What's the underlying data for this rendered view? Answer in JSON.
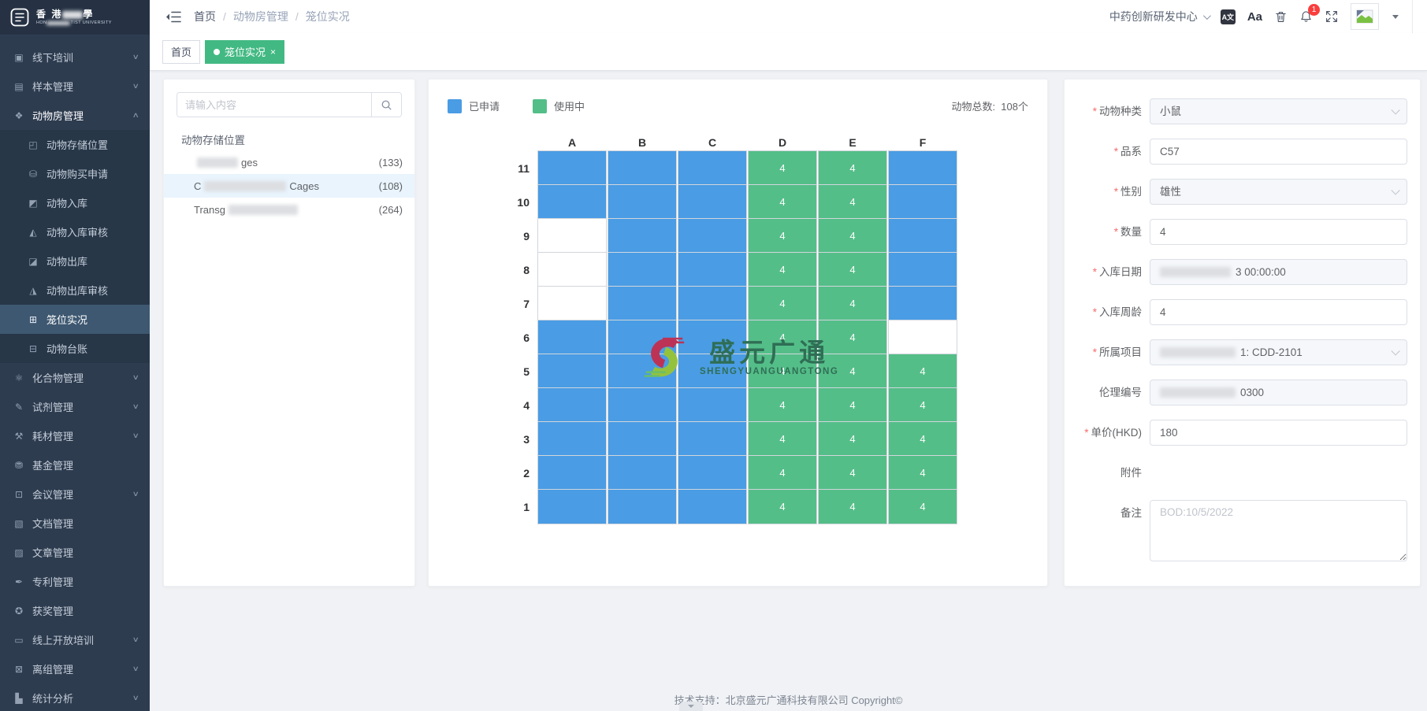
{
  "brand": {
    "zh_prefix": "香 港",
    "zh_suffix": "學",
    "en_prefix": "HON",
    "en_suffix": "TIST UNIVERSITY"
  },
  "sidebar": {
    "items": [
      {
        "name": "offline-training",
        "label": "线下培训",
        "glyph": "▣",
        "chevron": "down"
      },
      {
        "name": "sample-management",
        "label": "样本管理",
        "glyph": "▤",
        "chevron": "down"
      },
      {
        "name": "animal-room-management",
        "label": "动物房管理",
        "glyph": "❖",
        "chevron": "up",
        "open": true,
        "children": [
          {
            "name": "animal-storage-location",
            "label": "动物存储位置",
            "glyph": "◰"
          },
          {
            "name": "animal-purchase-request",
            "label": "动物购买申请",
            "glyph": "⛁"
          },
          {
            "name": "animal-inbound",
            "label": "动物入库",
            "glyph": "◩"
          },
          {
            "name": "animal-inbound-audit",
            "label": "动物入库审核",
            "glyph": "◭"
          },
          {
            "name": "animal-outbound",
            "label": "动物出库",
            "glyph": "◪"
          },
          {
            "name": "animal-outbound-audit",
            "label": "动物出库审核",
            "glyph": "◮"
          },
          {
            "name": "cage-live-status",
            "label": "笼位实况",
            "glyph": "⊞",
            "active": true
          },
          {
            "name": "animal-ledger",
            "label": "动物台账",
            "glyph": "⊟"
          }
        ]
      },
      {
        "name": "compound-management",
        "label": "化合物管理",
        "glyph": "⚛",
        "chevron": "down"
      },
      {
        "name": "reagent-management",
        "label": "试剂管理",
        "glyph": "✎",
        "chevron": "down"
      },
      {
        "name": "consumable-management",
        "label": "耗材管理",
        "glyph": "⚒",
        "chevron": "down"
      },
      {
        "name": "fund-management",
        "label": "基金管理",
        "glyph": "⛃"
      },
      {
        "name": "meeting-management",
        "label": "会议管理",
        "glyph": "⊡",
        "chevron": "down"
      },
      {
        "name": "document-management",
        "label": "文档管理",
        "glyph": "▧"
      },
      {
        "name": "article-management",
        "label": "文章管理",
        "glyph": "▨"
      },
      {
        "name": "patent-management",
        "label": "专利管理",
        "glyph": "✒"
      },
      {
        "name": "award-management",
        "label": "获奖管理",
        "glyph": "✪"
      },
      {
        "name": "online-open-training",
        "label": "线上开放培训",
        "glyph": "▭",
        "chevron": "down"
      },
      {
        "name": "group-exit-management",
        "label": "离组管理",
        "glyph": "⊠",
        "chevron": "down"
      },
      {
        "name": "statistics-analysis",
        "label": "统计分析",
        "glyph": "▙",
        "chevron": "down"
      }
    ]
  },
  "header": {
    "breadcrumb": [
      "首页",
      "动物房管理",
      "笼位实况"
    ],
    "org": "中药创新研发中心",
    "bell_badge": "1",
    "icons": [
      "collapse-sidebar-icon",
      "translate-icon",
      "font-size-icon",
      "trash-icon",
      "bell-icon",
      "fullscreen-icon",
      "avatar",
      "avatar-dropdown-caret"
    ]
  },
  "tabs": [
    {
      "label": "首页",
      "active": false
    },
    {
      "label": "笼位实况",
      "active": true,
      "closable": true
    }
  ],
  "left_panel": {
    "search_placeholder": "请输入内容",
    "tree_root": "动物存储位置",
    "tree_items": [
      {
        "pre": "",
        "blur_w": 52,
        "suf": "ges",
        "count": "(133)",
        "selected": false
      },
      {
        "pre": "C",
        "blur_w": 104,
        "suf": "Cages",
        "count": "(108)",
        "selected": true
      },
      {
        "pre": "Transg",
        "blur_w": 88,
        "suf": "",
        "count": "(264)",
        "selected": false
      }
    ]
  },
  "cage_panel": {
    "legend": [
      {
        "label": "已申请",
        "color": "#4a9ce4"
      },
      {
        "label": "使用中",
        "color": "#54be88"
      }
    ],
    "total_label": "动物总数:",
    "total_value": "108个",
    "columns": [
      "A",
      "B",
      "C",
      "D",
      "E",
      "F"
    ],
    "rows": [
      {
        "label": "11",
        "cells": [
          {
            "s": "applied"
          },
          {
            "s": "applied"
          },
          {
            "s": "applied"
          },
          {
            "s": "used",
            "v": "4"
          },
          {
            "s": "used",
            "v": "4"
          },
          {
            "s": "applied"
          }
        ]
      },
      {
        "label": "10",
        "cells": [
          {
            "s": "applied"
          },
          {
            "s": "applied"
          },
          {
            "s": "applied"
          },
          {
            "s": "used",
            "v": "4"
          },
          {
            "s": "used",
            "v": "4"
          },
          {
            "s": "applied"
          }
        ]
      },
      {
        "label": "9",
        "cells": [
          {
            "s": "empty"
          },
          {
            "s": "applied"
          },
          {
            "s": "applied"
          },
          {
            "s": "used",
            "v": "4"
          },
          {
            "s": "used",
            "v": "4"
          },
          {
            "s": "applied"
          }
        ]
      },
      {
        "label": "8",
        "cells": [
          {
            "s": "empty"
          },
          {
            "s": "applied"
          },
          {
            "s": "applied"
          },
          {
            "s": "used",
            "v": "4"
          },
          {
            "s": "used",
            "v": "4"
          },
          {
            "s": "applied"
          }
        ]
      },
      {
        "label": "7",
        "cells": [
          {
            "s": "empty"
          },
          {
            "s": "applied"
          },
          {
            "s": "applied"
          },
          {
            "s": "used",
            "v": "4"
          },
          {
            "s": "used",
            "v": "4"
          },
          {
            "s": "applied"
          }
        ]
      },
      {
        "label": "6",
        "cells": [
          {
            "s": "applied"
          },
          {
            "s": "applied"
          },
          {
            "s": "applied"
          },
          {
            "s": "used",
            "v": "4"
          },
          {
            "s": "used",
            "v": "4"
          },
          {
            "s": "empty"
          }
        ]
      },
      {
        "label": "5",
        "cells": [
          {
            "s": "applied"
          },
          {
            "s": "applied"
          },
          {
            "s": "applied"
          },
          {
            "s": "used",
            "v": "4"
          },
          {
            "s": "used",
            "v": "4"
          },
          {
            "s": "used",
            "v": "4"
          }
        ]
      },
      {
        "label": "4",
        "cells": [
          {
            "s": "applied"
          },
          {
            "s": "applied"
          },
          {
            "s": "applied"
          },
          {
            "s": "used",
            "v": "4"
          },
          {
            "s": "used",
            "v": "4"
          },
          {
            "s": "used",
            "v": "4"
          }
        ]
      },
      {
        "label": "3",
        "cells": [
          {
            "s": "applied"
          },
          {
            "s": "applied"
          },
          {
            "s": "applied"
          },
          {
            "s": "used",
            "v": "4"
          },
          {
            "s": "used",
            "v": "4"
          },
          {
            "s": "used",
            "v": "4"
          }
        ]
      },
      {
        "label": "2",
        "cells": [
          {
            "s": "applied"
          },
          {
            "s": "applied"
          },
          {
            "s": "applied"
          },
          {
            "s": "used",
            "v": "4"
          },
          {
            "s": "used",
            "v": "4"
          },
          {
            "s": "used",
            "v": "4"
          }
        ]
      },
      {
        "label": "1",
        "cells": [
          {
            "s": "applied"
          },
          {
            "s": "applied"
          },
          {
            "s": "applied"
          },
          {
            "s": "used",
            "v": "4"
          },
          {
            "s": "used",
            "v": "4"
          },
          {
            "s": "used",
            "v": "4"
          }
        ]
      }
    ]
  },
  "watermark": {
    "title": "盛元广通",
    "subtitle": "SHENGYUANGUANGTONG"
  },
  "form": {
    "fields": [
      {
        "name": "animal-species",
        "label": "动物种类",
        "required": true,
        "type": "select",
        "value": "小鼠",
        "gray": true
      },
      {
        "name": "strain",
        "label": "品系",
        "required": true,
        "type": "input",
        "value": "C57"
      },
      {
        "name": "sex",
        "label": "性别",
        "required": true,
        "type": "select",
        "value": "雄性",
        "gray": true
      },
      {
        "name": "quantity",
        "label": "数量",
        "required": true,
        "type": "input",
        "value": "4"
      },
      {
        "name": "inbound-date",
        "label": "入库日期",
        "required": true,
        "type": "input",
        "value": "3 00:00:00",
        "blur_before": 90,
        "gray": true
      },
      {
        "name": "inbound-age-weeks",
        "label": "入库周龄",
        "required": true,
        "type": "input",
        "value": "4"
      },
      {
        "name": "project",
        "label": "所属项目",
        "required": true,
        "type": "select",
        "value": "1: CDD-2101",
        "blur_before": 96,
        "gray": true
      },
      {
        "name": "ethics-number",
        "label": "伦理编号",
        "required": false,
        "type": "input",
        "value": "0300",
        "blur_before": 96,
        "gray": true
      },
      {
        "name": "unit-price-hkd",
        "label": "单价(HKD)",
        "required": true,
        "type": "input",
        "value": "180"
      },
      {
        "name": "attachment",
        "label": "附件",
        "required": false,
        "type": "none",
        "value": ""
      },
      {
        "name": "remark",
        "label": "备注",
        "required": false,
        "type": "textarea",
        "value": "BOD:10/5/2022",
        "muted": true
      }
    ]
  },
  "footer": {
    "text": "技术支持：北京盛元广通科技有限公司 Copyright©"
  }
}
